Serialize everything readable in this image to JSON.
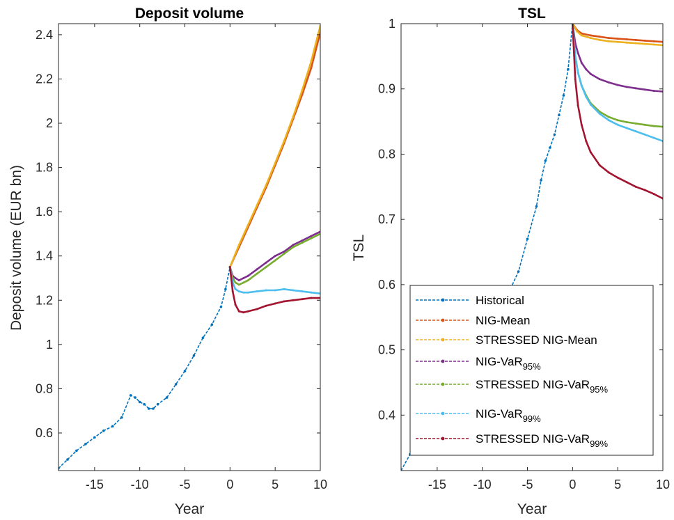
{
  "chart_data": [
    {
      "type": "line",
      "title": "Deposit volume",
      "xlabel": "Year",
      "ylabel": "Deposit volume (EUR bn)",
      "xlim": [
        -19,
        10
      ],
      "ylim": [
        0.43,
        2.45
      ],
      "xticks": [
        -15,
        -10,
        -5,
        0,
        5,
        10
      ],
      "xtick_labels": [
        "-15",
        "-10",
        "-5",
        "0",
        "5",
        "10"
      ],
      "yticks": [
        0.6,
        0.8,
        1,
        1.2,
        1.4,
        1.6,
        1.8,
        2,
        2.2,
        2.4
      ],
      "ytick_labels": [
        "0.6",
        "0.8",
        "1",
        "1.2",
        "1.4",
        "1.6",
        "1.8",
        "2",
        "2.2",
        "2.4"
      ],
      "grid": false,
      "series": [
        {
          "name": "Historical",
          "color": "#0072BD",
          "x": [
            -19,
            -18,
            -17,
            -16,
            -15,
            -14,
            -13,
            -12,
            -11,
            -10.5,
            -10,
            -9.5,
            -9,
            -8.5,
            -8,
            -7,
            -6,
            -5,
            -4,
            -3,
            -2,
            -1,
            -0.5,
            0
          ],
          "y": [
            0.44,
            0.48,
            0.52,
            0.55,
            0.58,
            0.61,
            0.63,
            0.67,
            0.77,
            0.76,
            0.74,
            0.73,
            0.71,
            0.71,
            0.73,
            0.76,
            0.82,
            0.88,
            0.95,
            1.03,
            1.09,
            1.17,
            1.25,
            1.35
          ]
        },
        {
          "name": "NIG-Mean",
          "color": "#D95319",
          "x": [
            0,
            1,
            2,
            3,
            4,
            5,
            6,
            7,
            8,
            9,
            10
          ],
          "y": [
            1.35,
            1.44,
            1.53,
            1.62,
            1.71,
            1.81,
            1.91,
            2.02,
            2.13,
            2.25,
            2.41
          ]
        },
        {
          "name": "STRESSED NIG-Mean",
          "color": "#EDB120",
          "x": [
            0,
            1,
            2,
            3,
            4,
            5,
            6,
            7,
            8,
            9,
            10
          ],
          "y": [
            1.35,
            1.45,
            1.54,
            1.63,
            1.72,
            1.82,
            1.92,
            2.03,
            2.15,
            2.28,
            2.44
          ]
        },
        {
          "name": "NIG-VaR95%",
          "color": "#7E2F8E",
          "x": [
            0,
            0.3,
            0.6,
            1,
            1.5,
            2,
            3,
            4,
            5,
            6,
            7,
            8,
            9,
            10
          ],
          "y": [
            1.35,
            1.31,
            1.3,
            1.29,
            1.3,
            1.31,
            1.34,
            1.37,
            1.4,
            1.42,
            1.45,
            1.47,
            1.49,
            1.51
          ]
        },
        {
          "name": "STRESSED NIG-VaR95%",
          "color": "#77AC30",
          "x": [
            0,
            0.3,
            0.6,
            1,
            1.5,
            2,
            3,
            4,
            5,
            6,
            7,
            8,
            9,
            10
          ],
          "y": [
            1.35,
            1.3,
            1.28,
            1.27,
            1.28,
            1.29,
            1.32,
            1.35,
            1.38,
            1.41,
            1.44,
            1.46,
            1.48,
            1.5
          ]
        },
        {
          "name": "NIG-VaR99%",
          "color": "#4DBEEE",
          "x": [
            0,
            0.3,
            0.6,
            1,
            1.5,
            2,
            3,
            4,
            5,
            6,
            7,
            8,
            9,
            10
          ],
          "y": [
            1.35,
            1.28,
            1.25,
            1.24,
            1.235,
            1.235,
            1.24,
            1.245,
            1.245,
            1.25,
            1.245,
            1.24,
            1.235,
            1.23
          ]
        },
        {
          "name": "STRESSED NIG-VaR99%",
          "color": "#A2142F",
          "x": [
            0,
            0.3,
            0.6,
            1,
            1.5,
            2,
            3,
            4,
            5,
            6,
            7,
            8,
            9,
            10
          ],
          "y": [
            1.35,
            1.24,
            1.18,
            1.15,
            1.145,
            1.15,
            1.16,
            1.175,
            1.185,
            1.195,
            1.2,
            1.205,
            1.21,
            1.21
          ]
        }
      ]
    },
    {
      "type": "line",
      "title": "TSL",
      "xlabel": "Year",
      "ylabel": "TSL",
      "xlim": [
        -19,
        10
      ],
      "ylim": [
        0.315,
        1
      ],
      "xticks": [
        -15,
        -10,
        -5,
        0,
        5,
        10
      ],
      "xtick_labels": [
        "-15",
        "-10",
        "-5",
        "0",
        "5",
        "10"
      ],
      "yticks": [
        0.4,
        0.5,
        0.6,
        0.7,
        0.8,
        0.9,
        1
      ],
      "ytick_labels": [
        "0.4",
        "0.5",
        "0.6",
        "0.7",
        "0.8",
        "0.9",
        "1"
      ],
      "grid": false,
      "legend_location": "bottom-left",
      "series": [
        {
          "name": "Historical",
          "color": "#0072BD",
          "x": [
            -19,
            -18,
            -17,
            -16,
            -15,
            -14,
            -13,
            -12,
            -11,
            -10,
            -9,
            -8,
            -7,
            -6,
            -5,
            -4,
            -3.5,
            -3,
            -2.5,
            -2,
            -1.5,
            -1,
            -0.5,
            0
          ],
          "y": [
            0.315,
            0.34,
            0.36,
            0.38,
            0.4,
            0.42,
            0.44,
            0.46,
            0.48,
            0.5,
            0.53,
            0.56,
            0.59,
            0.62,
            0.67,
            0.72,
            0.76,
            0.79,
            0.81,
            0.83,
            0.86,
            0.89,
            0.93,
            1.0
          ]
        },
        {
          "name": "NIG-Mean",
          "color": "#D95319",
          "x": [
            0,
            0.5,
            1,
            2,
            3,
            4,
            5,
            6,
            7,
            8,
            9,
            10
          ],
          "y": [
            1.0,
            0.99,
            0.985,
            0.982,
            0.98,
            0.978,
            0.977,
            0.976,
            0.975,
            0.974,
            0.973,
            0.972
          ]
        },
        {
          "name": "STRESSED NIG-Mean",
          "color": "#EDB120",
          "x": [
            0,
            0.5,
            1,
            2,
            3,
            4,
            5,
            6,
            7,
            8,
            9,
            10
          ],
          "y": [
            1.0,
            0.988,
            0.982,
            0.978,
            0.975,
            0.973,
            0.972,
            0.971,
            0.97,
            0.969,
            0.968,
            0.967
          ]
        },
        {
          "name": "NIG-VaR95%",
          "color": "#7E2F8E",
          "x": [
            0,
            0.3,
            0.6,
            1,
            1.5,
            2,
            3,
            4,
            5,
            6,
            7,
            8,
            9,
            10
          ],
          "y": [
            1.0,
            0.97,
            0.955,
            0.94,
            0.93,
            0.923,
            0.915,
            0.91,
            0.906,
            0.903,
            0.901,
            0.899,
            0.897,
            0.896
          ]
        },
        {
          "name": "STRESSED NIG-VaR95%",
          "color": "#77AC30",
          "x": [
            0,
            0.3,
            0.6,
            1,
            1.5,
            2,
            3,
            4,
            5,
            6,
            7,
            8,
            9,
            10
          ],
          "y": [
            1.0,
            0.95,
            0.925,
            0.905,
            0.89,
            0.878,
            0.865,
            0.857,
            0.852,
            0.849,
            0.847,
            0.845,
            0.843,
            0.842
          ]
        },
        {
          "name": "NIG-VaR99%",
          "color": "#4DBEEE",
          "x": [
            0,
            0.3,
            0.6,
            1,
            1.5,
            2,
            3,
            4,
            5,
            6,
            7,
            8,
            9,
            10
          ],
          "y": [
            1.0,
            0.95,
            0.925,
            0.905,
            0.888,
            0.876,
            0.862,
            0.852,
            0.845,
            0.84,
            0.835,
            0.83,
            0.825,
            0.82
          ]
        },
        {
          "name": "STRESSED NIG-VaR99%",
          "color": "#A2142F",
          "x": [
            0,
            0.3,
            0.6,
            1,
            1.5,
            2,
            3,
            4,
            5,
            6,
            7,
            8,
            9,
            10
          ],
          "y": [
            1.0,
            0.915,
            0.875,
            0.845,
            0.82,
            0.803,
            0.783,
            0.772,
            0.764,
            0.757,
            0.75,
            0.745,
            0.739,
            0.732
          ]
        }
      ],
      "legend": [
        {
          "label": "Historical",
          "color": "#0072BD"
        },
        {
          "label": "NIG-Mean",
          "color": "#D95319"
        },
        {
          "label": "STRESSED NIG-Mean",
          "color": "#EDB120"
        },
        {
          "label": "NIG-VaR",
          "sub": "95%",
          "color": "#7E2F8E"
        },
        {
          "label": "STRESSED NIG-VaR",
          "sub": "95%",
          "color": "#77AC30"
        },
        {
          "label": "NIG-VaR",
          "sub": "99%",
          "color": "#4DBEEE"
        },
        {
          "label": "STRESSED NIG-VaR",
          "sub": "99%",
          "color": "#A2142F"
        }
      ]
    }
  ]
}
